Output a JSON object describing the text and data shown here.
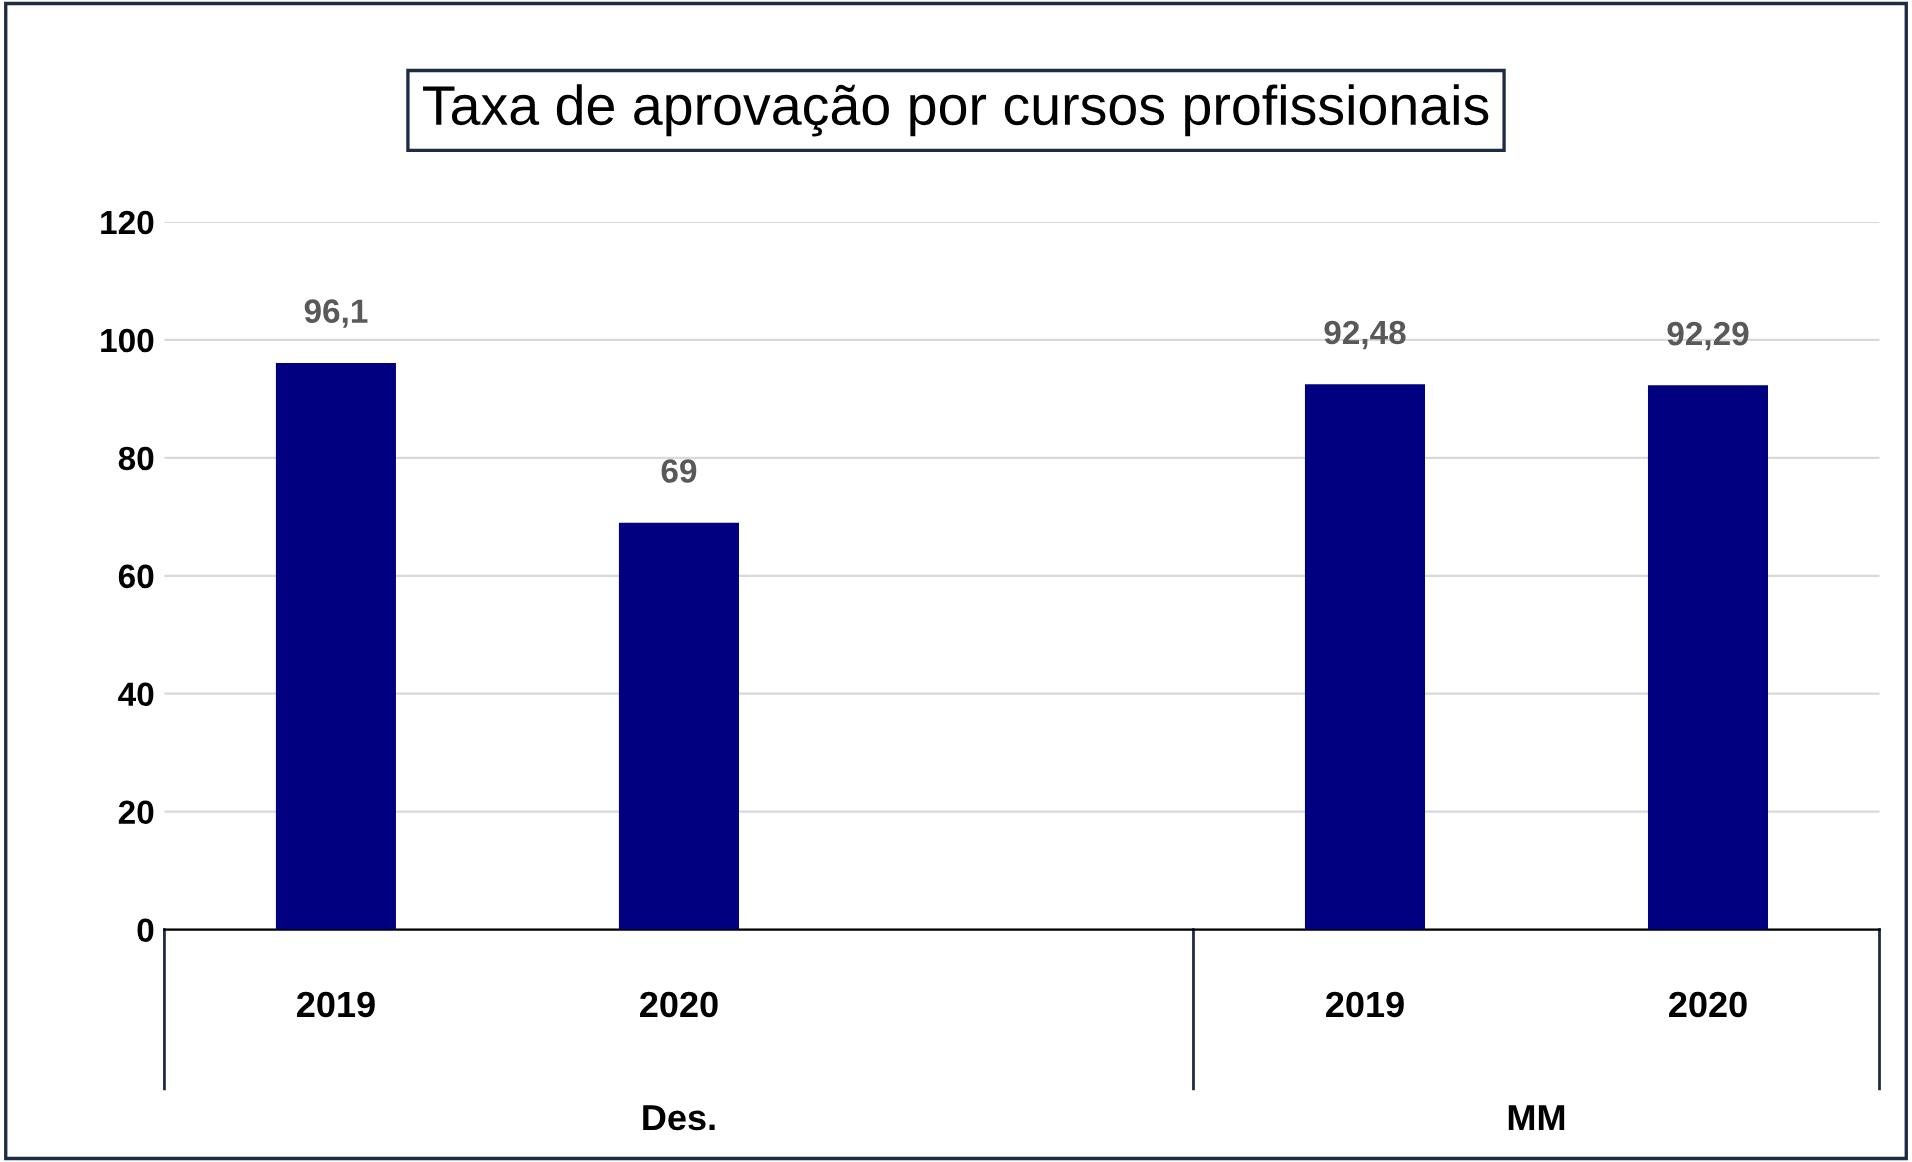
{
  "chart_data": {
    "type": "bar",
    "title": "Taxa de aprovação por cursos profissionais",
    "categories": [
      "2019",
      "2020",
      null,
      "2019",
      "2020"
    ],
    "values": [
      96.1,
      69,
      null,
      92.48,
      92.29
    ],
    "value_labels": [
      "96,1",
      "69",
      null,
      "92,48",
      "92,29"
    ],
    "color": "#000080",
    "ylim": [
      0,
      120
    ],
    "yticks": [
      0,
      20,
      40,
      60,
      80,
      100,
      120
    ],
    "grid": "y",
    "annotations": [
      "Des.",
      "MM"
    ]
  }
}
